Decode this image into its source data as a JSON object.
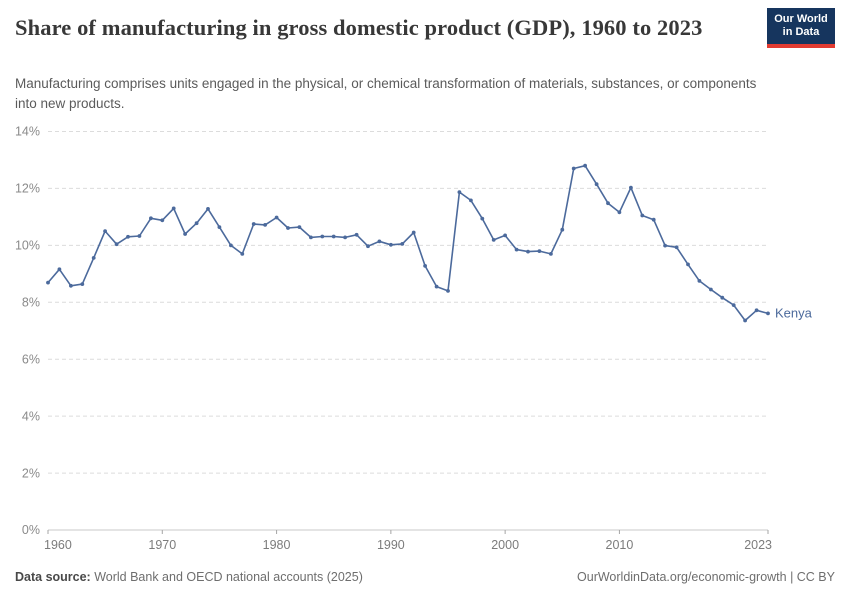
{
  "header": {
    "title": "Share of manufacturing in gross domestic product (GDP), 1960 to 2023",
    "subtitle": "Manufacturing comprises units engaged in the physical, or chemical transformation of materials, substances, or components into new products.",
    "logo_line1": "Our World",
    "logo_line2": "in Data",
    "logo_bg_color": "#16355e",
    "logo_accent_color": "#e23b31"
  },
  "chart_data": {
    "type": "line",
    "title": "Share of manufacturing in gross domestic product (GDP), 1960 to 2023",
    "xlabel": "",
    "ylabel": "",
    "ylim": [
      0,
      14
    ],
    "yticks": [
      0,
      2,
      4,
      6,
      8,
      10,
      12,
      14
    ],
    "ytick_suffix": "%",
    "xticks": [
      1960,
      1970,
      1980,
      1990,
      2000,
      2010,
      2023
    ],
    "grid": "dashed horizontal",
    "legend_position": "end-of-line label",
    "line_color": "#4c6a9c",
    "series": [
      {
        "name": "Kenya",
        "x": [
          1960,
          1961,
          1962,
          1963,
          1964,
          1965,
          1966,
          1967,
          1968,
          1969,
          1970,
          1971,
          1972,
          1973,
          1974,
          1975,
          1976,
          1977,
          1978,
          1979,
          1980,
          1981,
          1982,
          1983,
          1984,
          1985,
          1986,
          1987,
          1988,
          1989,
          1990,
          1991,
          1992,
          1993,
          1994,
          1995,
          1996,
          1997,
          1998,
          1999,
          2000,
          2001,
          2002,
          2003,
          2004,
          2005,
          2006,
          2007,
          2008,
          2009,
          2010,
          2011,
          2012,
          2013,
          2014,
          2015,
          2016,
          2017,
          2018,
          2019,
          2020,
          2021,
          2022,
          2023
        ],
        "values": [
          8.69,
          9.16,
          8.58,
          8.64,
          9.56,
          10.5,
          10.04,
          10.3,
          10.33,
          10.95,
          10.88,
          11.3,
          10.4,
          10.78,
          11.28,
          10.64,
          10.0,
          9.7,
          10.75,
          10.72,
          10.98,
          10.61,
          10.64,
          10.28,
          10.31,
          10.31,
          10.28,
          10.37,
          9.97,
          10.14,
          10.02,
          10.05,
          10.45,
          9.28,
          8.55,
          8.4,
          11.87,
          11.58,
          10.94,
          10.19,
          10.35,
          9.85,
          9.78,
          9.8,
          9.7,
          10.55,
          12.7,
          12.8,
          12.15,
          11.48,
          11.16,
          12.03,
          11.05,
          10.9,
          9.99,
          9.93,
          9.33,
          8.75,
          8.45,
          8.16,
          7.9,
          7.36,
          7.72,
          7.61
        ]
      }
    ]
  },
  "footer": {
    "data_source_label": "Data source:",
    "data_source_text": " World Bank and OECD national accounts (2025)",
    "credit_text": "OurWorldinData.org/economic-growth | CC BY"
  }
}
